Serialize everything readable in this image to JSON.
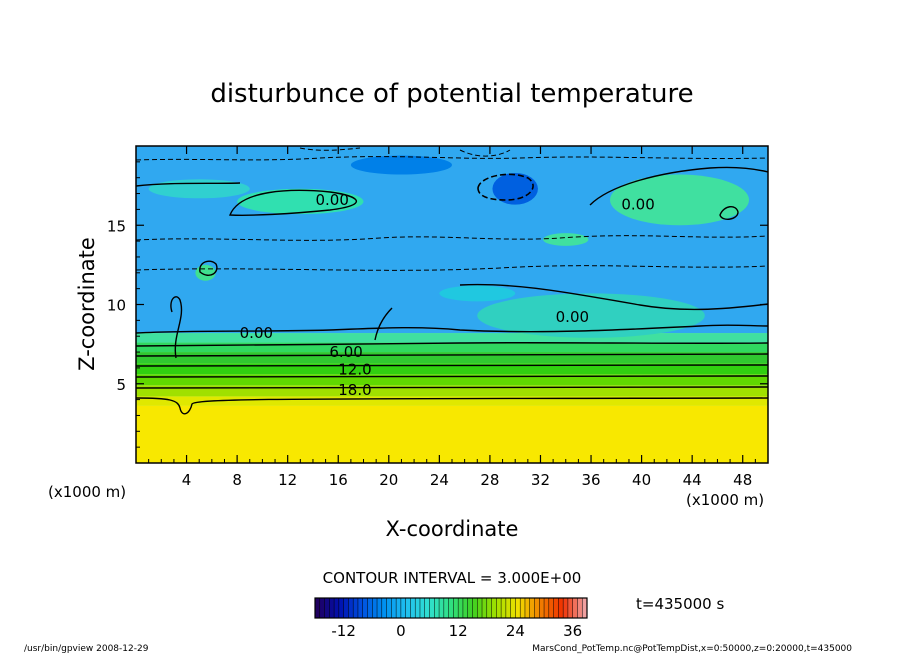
{
  "chart_data": {
    "type": "heatmap",
    "subtype": "filled contour",
    "title": "disturbunce of potential temperature",
    "xlabel": "X-coordinate",
    "ylabel": "Z-coordinate",
    "x_unit_label": "(x1000 m)",
    "xlim": [
      0,
      50
    ],
    "ylim": [
      0,
      20
    ],
    "x_ticks": [
      4,
      8,
      12,
      16,
      20,
      24,
      28,
      32,
      36,
      40,
      44,
      48
    ],
    "y_ticks": [
      5,
      10,
      15
    ],
    "contour_interval_text": "CONTOUR INTERVAL = 3.000E+00",
    "time_text": "t=435000 s",
    "colorbar": {
      "range": [
        -18,
        39
      ],
      "ticks": [
        -12,
        0,
        12,
        24,
        36
      ],
      "colors": [
        "#200060",
        "#0010b0",
        "#0050e0",
        "#0090f0",
        "#20c0f0",
        "#30e0d0",
        "#30e080",
        "#40d020",
        "#a0e000",
        "#f0e000",
        "#f08000",
        "#f03000",
        "#f0a0a0"
      ]
    },
    "contour_labels": [
      {
        "text": "0.00",
        "x": 14.2,
        "z": 16.6
      },
      {
        "text": "0.00",
        "x": 38.4,
        "z": 16.3
      },
      {
        "text": "0.00",
        "x": 8.2,
        "z": 8.2
      },
      {
        "text": "6.00",
        "x": 15.3,
        "z": 7.0
      },
      {
        "text": "12.0",
        "x": 16.0,
        "z": 5.9
      },
      {
        "text": "18.0",
        "x": 16.0,
        "z": 4.6
      },
      {
        "text": "0.00",
        "x": 33.2,
        "z": 9.2
      }
    ],
    "bands": [
      {
        "z0": 0,
        "z1": 3.6,
        "color": "#f8e800",
        "label": "yellow (~24-30)"
      },
      {
        "z0": 3.6,
        "z1": 4.2,
        "color": "#e0e800"
      },
      {
        "z0": 4.2,
        "z1": 4.9,
        "color": "#a0e000"
      },
      {
        "z0": 4.9,
        "z1": 5.6,
        "color": "#60d800"
      },
      {
        "z0": 5.6,
        "z1": 6.3,
        "color": "#30d010"
      },
      {
        "z0": 6.3,
        "z1": 7.0,
        "color": "#30c830"
      },
      {
        "z0": 7.0,
        "z1": 7.6,
        "color": "#30d860"
      },
      {
        "z0": 7.6,
        "z1": 8.2,
        "color": "#40e0a0"
      },
      {
        "z0": 8.2,
        "z1": 20,
        "color": "#30a8f0"
      }
    ],
    "blobs": [
      {
        "x": 5.5,
        "z": 12.0,
        "rx": 0.8,
        "rz": 0.5,
        "color": "#40e090"
      },
      {
        "x": 13.0,
        "z": 16.5,
        "rx": 5.0,
        "rz": 0.8,
        "color": "#30e0b0"
      },
      {
        "x": 5.0,
        "z": 17.3,
        "rx": 4.0,
        "rz": 0.6,
        "color": "#30d0d0"
      },
      {
        "x": 43.0,
        "z": 16.6,
        "rx": 5.5,
        "rz": 1.6,
        "color": "#40e0a0"
      },
      {
        "x": 30.0,
        "z": 17.3,
        "rx": 1.8,
        "rz": 1.0,
        "color": "#0060e0"
      },
      {
        "x": 21.0,
        "z": 18.8,
        "rx": 4.0,
        "rz": 0.6,
        "color": "#0080e8"
      },
      {
        "x": 36.0,
        "z": 9.3,
        "rx": 9.0,
        "rz": 1.4,
        "color": "#30d0c0"
      },
      {
        "x": 34.0,
        "z": 14.1,
        "rx": 1.8,
        "rz": 0.4,
        "color": "#40e0a0"
      },
      {
        "x": 27.0,
        "z": 10.7,
        "rx": 3.0,
        "rz": 0.5,
        "color": "#20c8e0"
      }
    ]
  },
  "footer": {
    "left": "/usr/bin/gpview   2008-12-29",
    "right": "MarsCond_PotTemp.nc@PotTempDist,x=0:50000,z=0:20000,t=435000"
  }
}
